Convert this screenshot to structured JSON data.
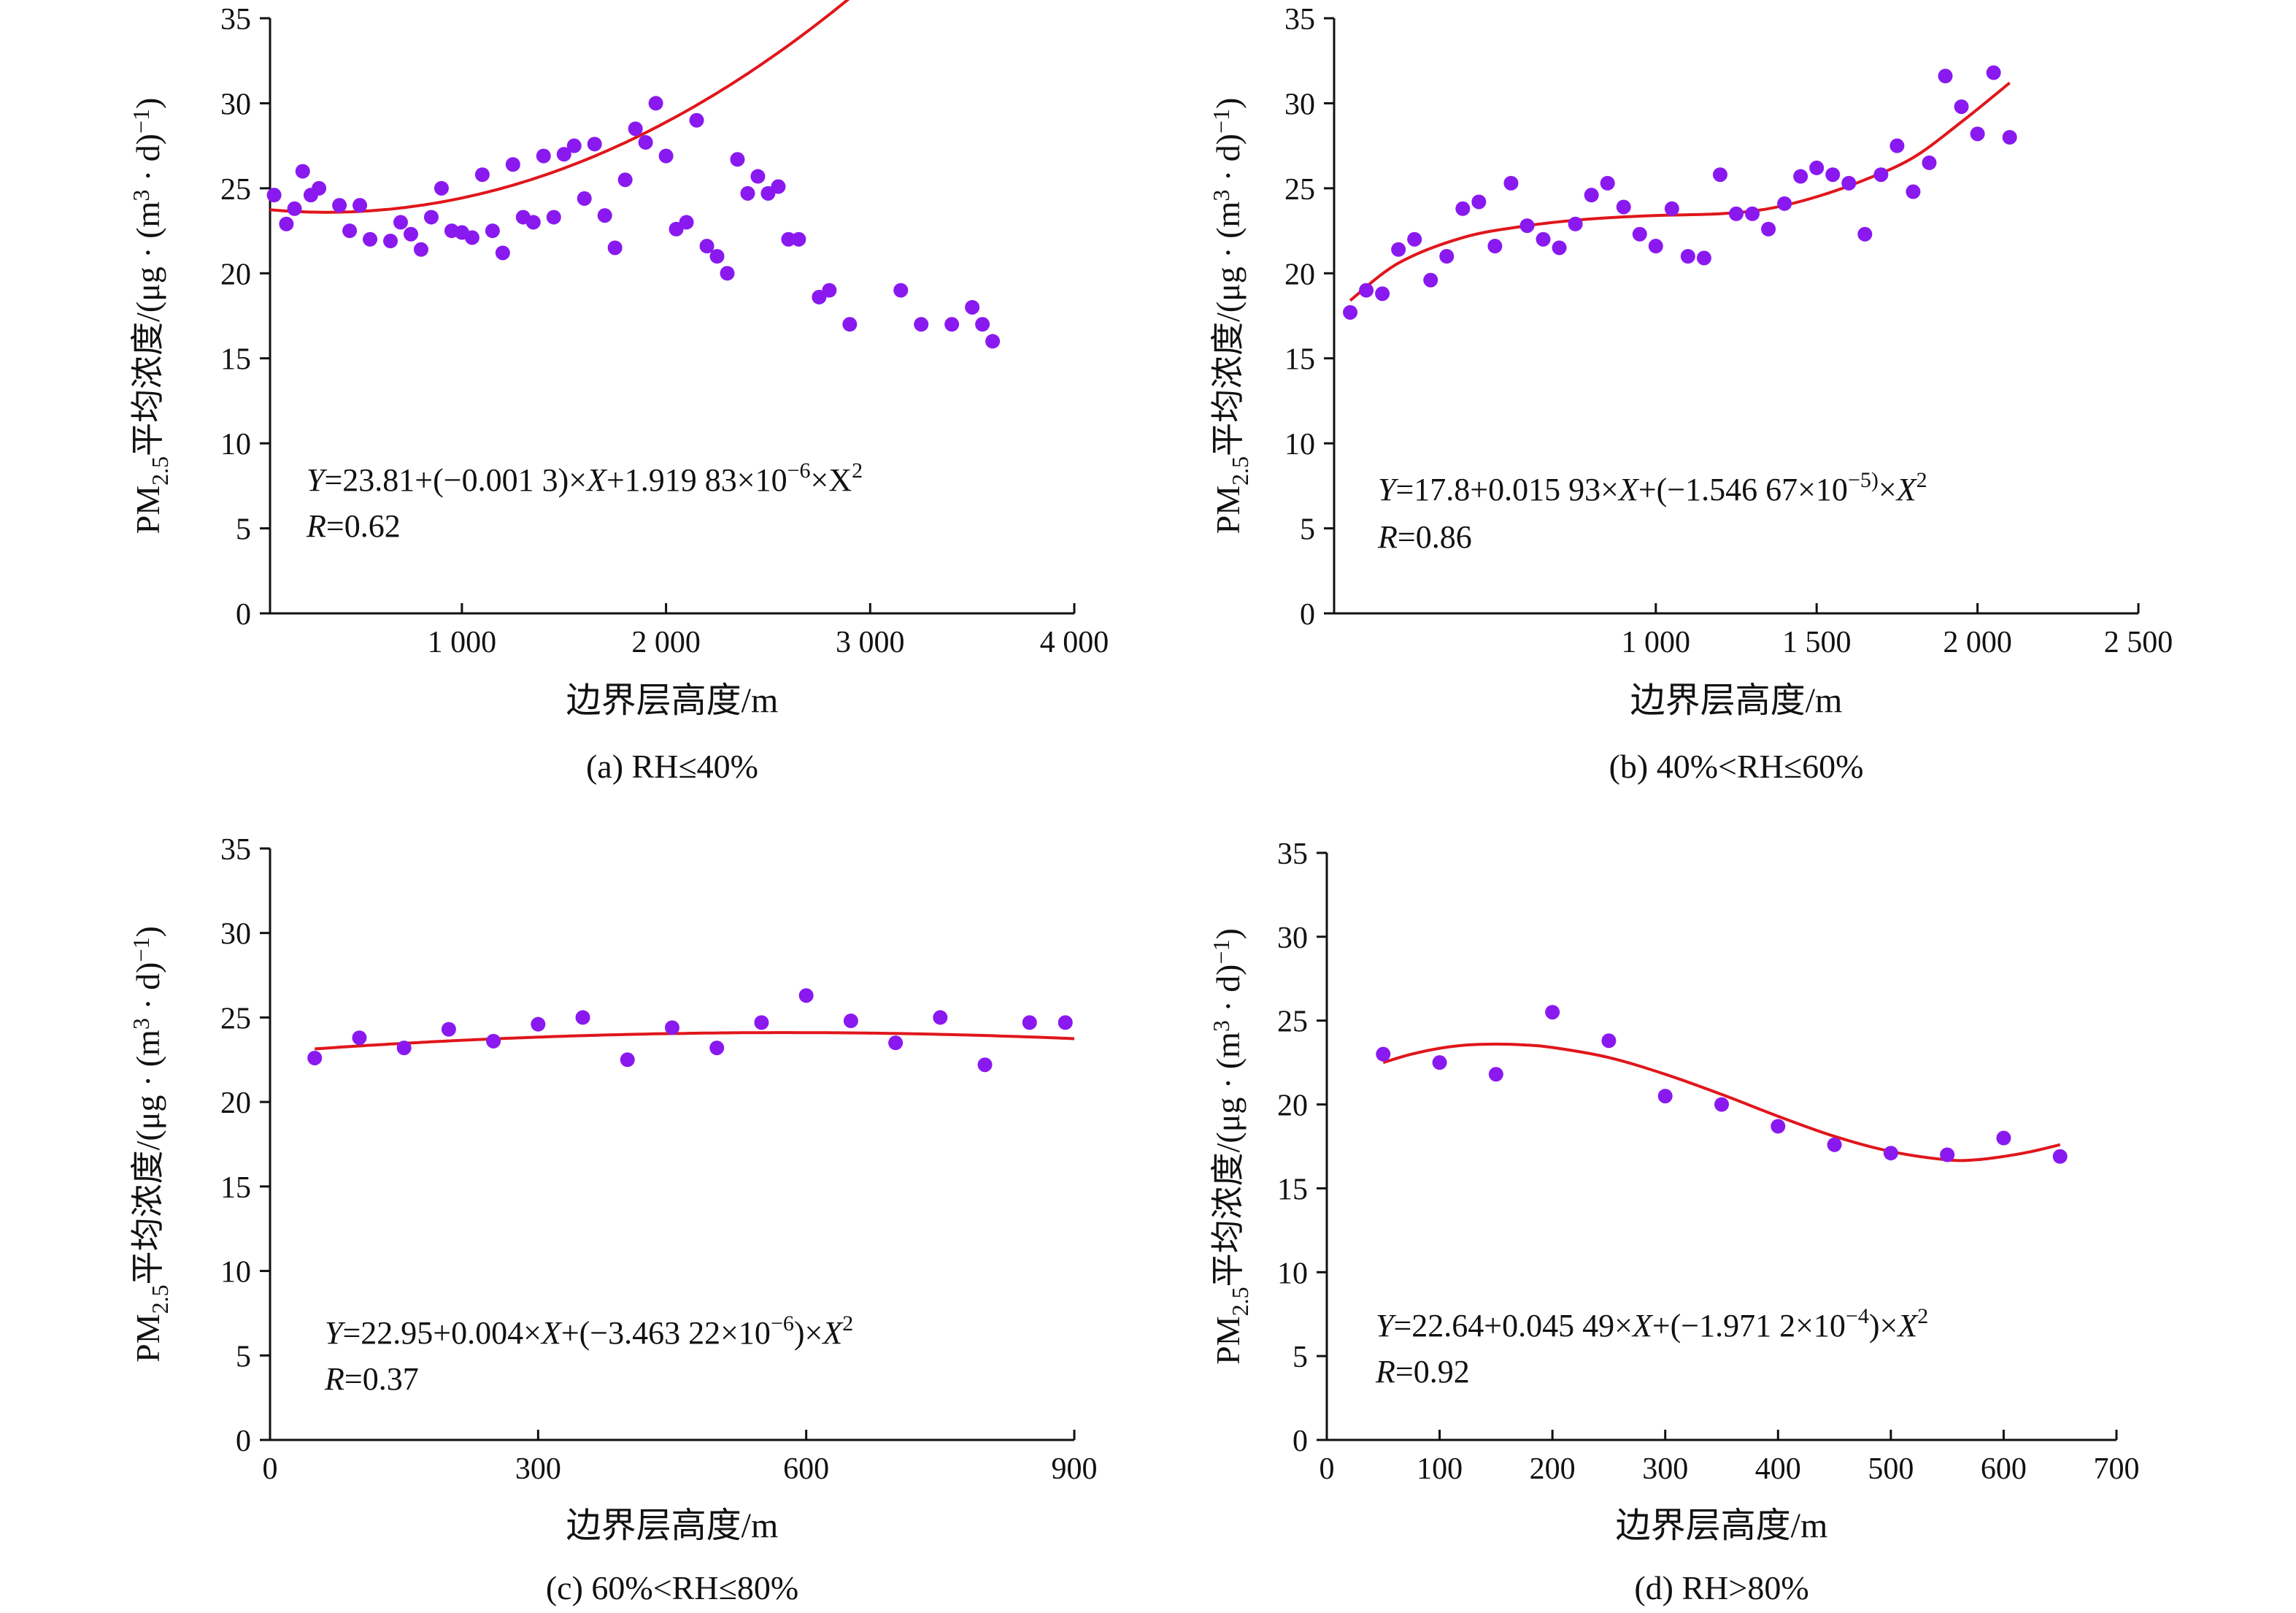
{
  "colors": {
    "points": "#8a19f0",
    "curve": "#e0161b",
    "axis": "#111111",
    "text": "#111111"
  },
  "chart_data": [
    {
      "type": "scatter",
      "caption": "(a) RH≤40%",
      "xlabel": "边界层高度/m",
      "ylabel": {
        "pre": "PM",
        "sub": "2.5",
        "mid": "平均浓度/(μg · (m",
        "sup1": "3",
        "mid2": " · d)",
        "sup2": "−1",
        "post": ")"
      },
      "xlim": [
        60,
        4000
      ],
      "ylim": [
        0,
        35
      ],
      "xticks": [
        1000,
        2000,
        3000,
        4000
      ],
      "xtick_labels": [
        "1 000",
        "2 000",
        "3 000",
        "4 000"
      ],
      "yticks": [
        0,
        5,
        10,
        15,
        20,
        25,
        30,
        35
      ],
      "ytick_labels": [
        "0",
        "5",
        "10",
        "15",
        "20",
        "25",
        "30",
        "35"
      ],
      "equation": [
        {
          "t": "Y",
          "i": true
        },
        {
          "t": "=23.81+(−0.001 3)×"
        },
        {
          "t": "X",
          "i": true
        },
        {
          "t": "+1.919 83×10"
        },
        {
          "t": "−6",
          "sup": true
        },
        {
          "t": "×X"
        },
        {
          "t": "2",
          "sup": true
        }
      ],
      "r_label": "R",
      "r_value": "=0.62",
      "trend": {
        "type": "quadratic",
        "coef": [
          23.81,
          -0.0013,
          1.91983e-06
        ],
        "x_range": [
          60,
          3600
        ]
      },
      "points": [
        [
          80,
          24.6
        ],
        [
          140,
          22.9
        ],
        [
          180,
          23.8
        ],
        [
          220,
          26.0
        ],
        [
          260,
          24.6
        ],
        [
          300,
          25.0
        ],
        [
          400,
          24.0
        ],
        [
          450,
          22.5
        ],
        [
          500,
          24.0
        ],
        [
          550,
          22.0
        ],
        [
          650,
          21.9
        ],
        [
          700,
          23.0
        ],
        [
          750,
          22.3
        ],
        [
          800,
          21.4
        ],
        [
          850,
          23.3
        ],
        [
          900,
          25.0
        ],
        [
          950,
          22.5
        ],
        [
          1000,
          22.4
        ],
        [
          1050,
          22.1
        ],
        [
          1100,
          25.8
        ],
        [
          1150,
          22.5
        ],
        [
          1200,
          21.2
        ],
        [
          1250,
          26.4
        ],
        [
          1300,
          23.3
        ],
        [
          1350,
          23.0
        ],
        [
          1400,
          26.9
        ],
        [
          1450,
          23.3
        ],
        [
          1500,
          27.0
        ],
        [
          1550,
          27.5
        ],
        [
          1600,
          24.4
        ],
        [
          1650,
          27.6
        ],
        [
          1700,
          23.4
        ],
        [
          1750,
          21.5
        ],
        [
          1800,
          25.5
        ],
        [
          1850,
          28.5
        ],
        [
          1900,
          27.7
        ],
        [
          1950,
          30.0
        ],
        [
          2000,
          26.9
        ],
        [
          2050,
          22.6
        ],
        [
          2100,
          23.0
        ],
        [
          2150,
          29.0
        ],
        [
          2200,
          21.6
        ],
        [
          2250,
          21.0
        ],
        [
          2300,
          20.0
        ],
        [
          2350,
          26.7
        ],
        [
          2400,
          24.7
        ],
        [
          2450,
          25.7
        ],
        [
          2500,
          24.7
        ],
        [
          2550,
          25.1
        ],
        [
          2600,
          22.0
        ],
        [
          2650,
          22.0
        ],
        [
          2750,
          18.6
        ],
        [
          2800,
          19.0
        ],
        [
          2900,
          17.0
        ],
        [
          3150,
          19.0
        ],
        [
          3250,
          17.0
        ],
        [
          3400,
          17.0
        ],
        [
          3500,
          18.0
        ],
        [
          3550,
          17.0
        ],
        [
          3600,
          16.0
        ]
      ]
    },
    {
      "type": "scatter",
      "caption": "(b) 40%<RH≤60%",
      "xlabel": "边界层高度/m",
      "ylabel": {
        "pre": "PM",
        "sub": "2.5",
        "mid": "平均浓度/(μg · (m",
        "sup1": "3",
        "mid2": " · d)",
        "sup2": "−1",
        "post": ")"
      },
      "xlim": [
        0,
        2500
      ],
      "ylim": [
        0,
        35
      ],
      "xticks": [
        1000,
        1500,
        2000,
        2500
      ],
      "xtick_labels": [
        "1 000",
        "1 500",
        "2 000",
        "2 500"
      ],
      "yticks": [
        0,
        5,
        10,
        15,
        20,
        25,
        30,
        35
      ],
      "ytick_labels": [
        "0",
        "5",
        "10",
        "15",
        "20",
        "25",
        "30",
        "35"
      ],
      "equation": [
        {
          "t": "Y",
          "i": true
        },
        {
          "t": "=17.8+0.015 93×"
        },
        {
          "t": "X",
          "i": true
        },
        {
          "t": "+(−1.546 67×10"
        },
        {
          "t": "−5)",
          "sup": true
        },
        {
          "t": "×"
        },
        {
          "t": "X",
          "i": true
        },
        {
          "t": "2",
          "sup": true
        }
      ],
      "r_label": "R",
      "r_value": "=0.86",
      "trend": {
        "type": "smooth",
        "x_range": [
          50,
          2100
        ]
      },
      "points": [
        [
          50,
          17.7
        ],
        [
          100,
          19.0
        ],
        [
          150,
          18.8
        ],
        [
          200,
          21.4
        ],
        [
          250,
          22.0
        ],
        [
          300,
          19.6
        ],
        [
          350,
          21.0
        ],
        [
          400,
          23.8
        ],
        [
          450,
          24.2
        ],
        [
          500,
          21.6
        ],
        [
          550,
          25.3
        ],
        [
          600,
          22.8
        ],
        [
          650,
          22.0
        ],
        [
          700,
          21.5
        ],
        [
          750,
          22.9
        ],
        [
          800,
          24.6
        ],
        [
          850,
          25.3
        ],
        [
          900,
          23.9
        ],
        [
          950,
          22.3
        ],
        [
          1000,
          21.6
        ],
        [
          1050,
          23.8
        ],
        [
          1100,
          21.0
        ],
        [
          1150,
          20.9
        ],
        [
          1200,
          25.8
        ],
        [
          1250,
          23.5
        ],
        [
          1300,
          23.5
        ],
        [
          1350,
          22.6
        ],
        [
          1400,
          24.1
        ],
        [
          1450,
          25.7
        ],
        [
          1500,
          26.2
        ],
        [
          1550,
          25.8
        ],
        [
          1600,
          25.3
        ],
        [
          1650,
          22.3
        ],
        [
          1700,
          25.8
        ],
        [
          1750,
          27.5
        ],
        [
          1800,
          24.8
        ],
        [
          1850,
          26.5
        ],
        [
          1900,
          31.6
        ],
        [
          1950,
          29.8
        ],
        [
          2000,
          28.2
        ],
        [
          2050,
          31.8
        ],
        [
          2100,
          28.0
        ]
      ]
    },
    {
      "type": "scatter",
      "caption": "(c) 60%<RH≤80%",
      "xlabel": "边界层高度/m",
      "ylabel": {
        "pre": "PM",
        "sub": "2.5",
        "mid": "平均浓度/(μg · (m",
        "sup1": "3",
        "mid2": " · d)",
        "sup2": "−1",
        "post": ")"
      },
      "xlim": [
        0,
        900
      ],
      "ylim": [
        0,
        35
      ],
      "xticks": [
        0,
        300,
        600,
        900
      ],
      "xtick_labels": [
        "0",
        "300",
        "600",
        "900"
      ],
      "yticks": [
        0,
        5,
        10,
        15,
        20,
        25,
        30,
        35
      ],
      "ytick_labels": [
        "0",
        "5",
        "10",
        "15",
        "20",
        "25",
        "30",
        "35"
      ],
      "equation": [
        {
          "t": "Y",
          "i": true
        },
        {
          "t": "=22.95+0.004×"
        },
        {
          "t": "X",
          "i": true
        },
        {
          "t": "+(−3.463 22×10"
        },
        {
          "t": "−6",
          "sup": true
        },
        {
          "t": ")×"
        },
        {
          "t": "X",
          "i": true
        },
        {
          "t": "2",
          "sup": true
        }
      ],
      "r_label": "R",
      "r_value": "=0.37",
      "trend": {
        "type": "quadratic",
        "coef": [
          22.95,
          0.004,
          -3.46322e-06
        ],
        "x_range": [
          50,
          900
        ]
      },
      "points": [
        [
          50,
          22.6
        ],
        [
          100,
          23.8
        ],
        [
          150,
          23.2
        ],
        [
          200,
          24.3
        ],
        [
          250,
          23.6
        ],
        [
          300,
          24.6
        ],
        [
          350,
          25.0
        ],
        [
          400,
          22.5
        ],
        [
          450,
          24.4
        ],
        [
          500,
          23.2
        ],
        [
          550,
          24.7
        ],
        [
          600,
          26.3
        ],
        [
          650,
          24.8
        ],
        [
          700,
          23.5
        ],
        [
          750,
          25.0
        ],
        [
          800,
          22.2
        ],
        [
          850,
          24.7
        ],
        [
          890,
          24.7
        ]
      ]
    },
    {
      "type": "scatter",
      "caption": "(d) RH>80%",
      "xlabel": "边界层高度/m",
      "ylabel": {
        "pre": "PM",
        "sub": "2.5",
        "mid": "平均浓度/(μg · (m",
        "sup1": "3",
        "mid2": " · d)",
        "sup2": "−1",
        "post": ")"
      },
      "xlim": [
        0,
        700
      ],
      "ylim": [
        0,
        35
      ],
      "xticks": [
        0,
        100,
        200,
        300,
        400,
        500,
        600,
        700
      ],
      "xtick_labels": [
        "0",
        "100",
        "200",
        "300",
        "400",
        "500",
        "600",
        "700"
      ],
      "yticks": [
        0,
        5,
        10,
        15,
        20,
        25,
        30,
        35
      ],
      "ytick_labels": [
        "0",
        "5",
        "10",
        "15",
        "20",
        "25",
        "30",
        "35"
      ],
      "equation": [
        {
          "t": "Y",
          "i": true
        },
        {
          "t": "=22.64+0.045 49×"
        },
        {
          "t": "X",
          "i": true
        },
        {
          "t": "+(−1.971 2×10"
        },
        {
          "t": "−4",
          "sup": true
        },
        {
          "t": ")×"
        },
        {
          "t": "X",
          "i": true
        },
        {
          "t": "2",
          "sup": true
        }
      ],
      "r_label": "R",
      "r_value": "=0.92",
      "trend": {
        "type": "smooth",
        "x_range": [
          50,
          650
        ]
      },
      "points": [
        [
          50,
          23.0
        ],
        [
          100,
          22.5
        ],
        [
          150,
          21.8
        ],
        [
          200,
          25.5
        ],
        [
          250,
          23.8
        ],
        [
          300,
          20.5
        ],
        [
          350,
          20.0
        ],
        [
          400,
          18.7
        ],
        [
          450,
          17.6
        ],
        [
          500,
          17.1
        ],
        [
          550,
          17.0
        ],
        [
          600,
          18.0
        ],
        [
          650,
          16.9
        ]
      ]
    }
  ]
}
